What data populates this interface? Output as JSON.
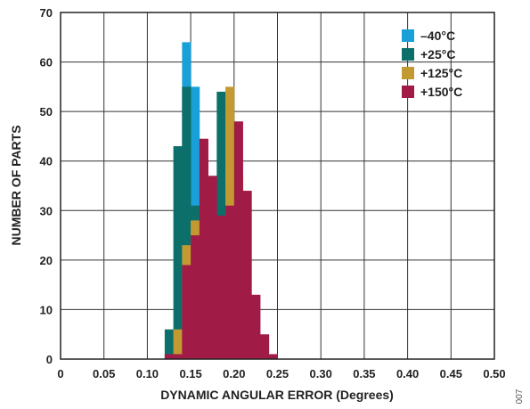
{
  "chart_data": {
    "type": "bar",
    "xlabel": "DYNAMIC ANGULAR ERROR (Degrees)",
    "ylabel": "NUMBER OF PARTS",
    "xlim": [
      0,
      0.5
    ],
    "ylim": [
      0,
      70
    ],
    "xticks": [
      "0",
      "0.05",
      "0.10",
      "0.15",
      "0.20",
      "0.25",
      "0.30",
      "0.35",
      "0.40",
      "0.45",
      "0.50"
    ],
    "yticks": [
      "0",
      "10",
      "20",
      "30",
      "40",
      "50",
      "60",
      "70"
    ],
    "grid": true,
    "legend_position": "top-right",
    "figure_code": "007",
    "bin_width": 0.01,
    "series": [
      {
        "name": "–40°C",
        "color": "#19a0d8",
        "bins": [
          [
            0.145,
            64
          ],
          [
            0.155,
            55
          ]
        ]
      },
      {
        "name": "+25°C",
        "color": "#0c6f6a",
        "bins": [
          [
            0.125,
            6
          ],
          [
            0.135,
            43
          ],
          [
            0.145,
            55
          ],
          [
            0.155,
            31
          ],
          [
            0.175,
            37
          ],
          [
            0.185,
            54
          ],
          [
            0.195,
            35
          ]
        ]
      },
      {
        "name": "+125°C",
        "color": "#c39a32",
        "bins": [
          [
            0.135,
            6
          ],
          [
            0.145,
            23
          ],
          [
            0.155,
            28
          ],
          [
            0.195,
            55
          ],
          [
            0.205,
            37
          ]
        ]
      },
      {
        "name": "+150°C",
        "color": "#a01c46",
        "bins": [
          [
            0.125,
            1
          ],
          [
            0.135,
            1
          ],
          [
            0.145,
            19
          ],
          [
            0.155,
            25
          ],
          [
            0.165,
            44.5
          ],
          [
            0.175,
            37
          ],
          [
            0.185,
            29
          ],
          [
            0.195,
            31
          ],
          [
            0.205,
            48
          ],
          [
            0.215,
            34
          ],
          [
            0.225,
            13
          ],
          [
            0.235,
            5
          ],
          [
            0.245,
            1
          ]
        ]
      }
    ]
  }
}
